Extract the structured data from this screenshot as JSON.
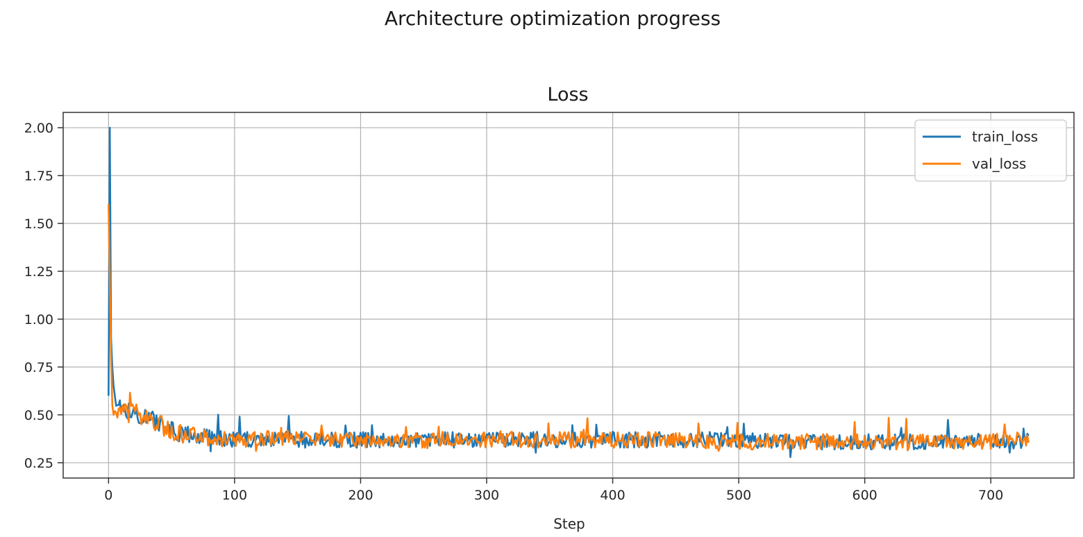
{
  "chart_data": {
    "type": "line",
    "suptitle": "Architecture optimization progress",
    "title": "Loss",
    "xlabel": "Step",
    "ylabel": "",
    "xlim": [
      -36,
      766
    ],
    "ylim": [
      0.17,
      2.08
    ],
    "xticks": [
      0,
      100,
      200,
      300,
      400,
      500,
      600,
      700
    ],
    "yticks": [
      0.25,
      0.5,
      0.75,
      1.0,
      1.25,
      1.5,
      1.75,
      2.0
    ],
    "ytick_labels": [
      "0.25",
      "0.50",
      "0.75",
      "1.00",
      "1.25",
      "1.50",
      "1.75",
      "2.00"
    ],
    "grid": true,
    "legend_position": "top-right",
    "x_max": 730,
    "series": [
      {
        "name": "train_loss",
        "color": "#1f77b4",
        "x": [
          0,
          1,
          2,
          3,
          4,
          5,
          6,
          8,
          10,
          15,
          20,
          25,
          30,
          40,
          50,
          60,
          80,
          100,
          150,
          200,
          250,
          300,
          350,
          400,
          450,
          500,
          550,
          600,
          650,
          700,
          730
        ],
        "y": [
          0.6,
          2.0,
          0.9,
          0.75,
          0.65,
          0.6,
          0.57,
          0.55,
          0.54,
          0.53,
          0.52,
          0.5,
          0.49,
          0.45,
          0.42,
          0.4,
          0.38,
          0.37,
          0.37,
          0.37,
          0.37,
          0.37,
          0.37,
          0.37,
          0.37,
          0.37,
          0.36,
          0.36,
          0.36,
          0.36,
          0.36
        ]
      },
      {
        "name": "val_loss",
        "color": "#ff7f0e",
        "x": [
          0,
          1,
          2,
          3,
          4,
          5,
          6,
          8,
          10,
          15,
          20,
          25,
          30,
          40,
          50,
          60,
          80,
          100,
          150,
          200,
          250,
          300,
          350,
          400,
          450,
          500,
          550,
          600,
          650,
          700,
          730
        ],
        "y": [
          1.6,
          1.2,
          0.8,
          0.55,
          0.5,
          0.52,
          0.53,
          0.52,
          0.52,
          0.52,
          0.51,
          0.5,
          0.48,
          0.45,
          0.42,
          0.4,
          0.38,
          0.37,
          0.38,
          0.37,
          0.37,
          0.37,
          0.37,
          0.37,
          0.37,
          0.36,
          0.36,
          0.36,
          0.36,
          0.36,
          0.37
        ]
      }
    ]
  }
}
